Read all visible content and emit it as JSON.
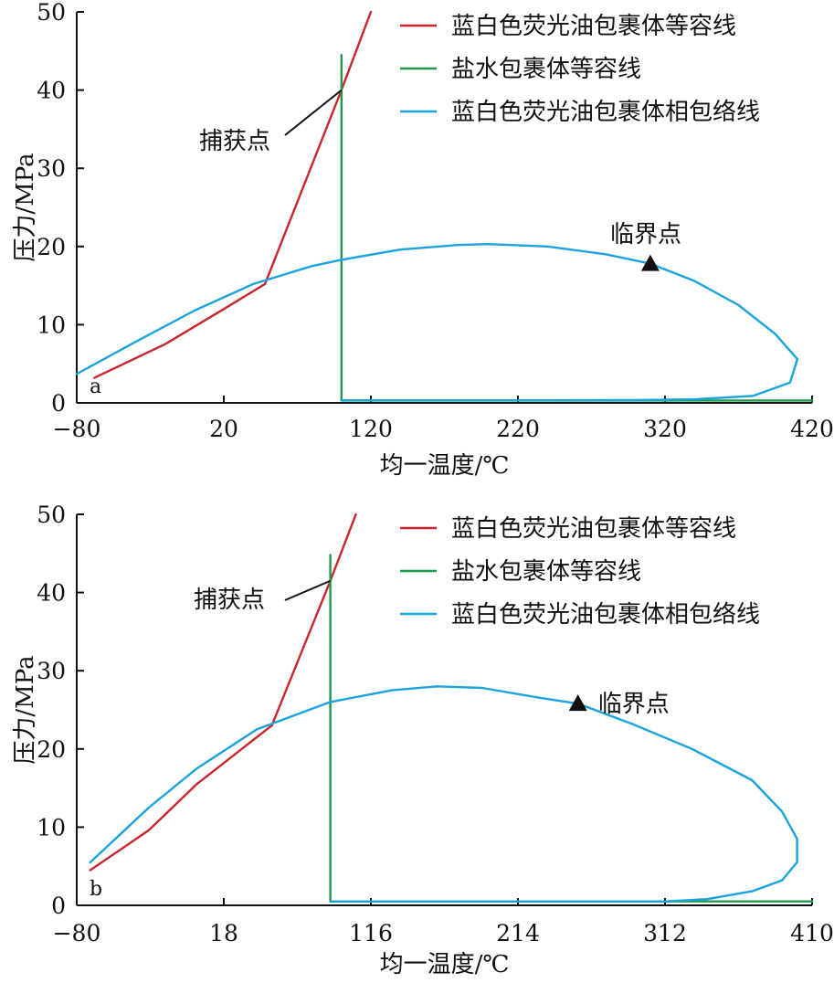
{
  "colors": {
    "isochore_oil": "#c8262c",
    "isochore_brine": "#1f9a4a",
    "envelope": "#1aa3dc",
    "axis": "#111111"
  },
  "chart_data": [
    {
      "type": "line",
      "panel": "a",
      "xlabel": "均一温度/℃",
      "ylabel": "压力/MPa",
      "xlim": [
        -80,
        420
      ],
      "ylim": [
        0,
        50
      ],
      "xticks": [
        -80,
        20,
        120,
        220,
        320,
        420
      ],
      "xtick_labels": [
        "−80",
        "20",
        "120",
        "220",
        "320",
        "420"
      ],
      "yticks": [
        0,
        10,
        20,
        30,
        40,
        50
      ],
      "ytick_labels": [
        "0",
        "10",
        "20",
        "30",
        "40",
        "50"
      ],
      "legend": {
        "position": "top-right",
        "entries": [
          "蓝白色荧光油包裹体等容线",
          "盐水包裹体等容线",
          "蓝白色荧光油包裹体相包络线"
        ]
      },
      "series": [
        {
          "name": "蓝白色荧光油包裹体等容线",
          "color_key": "isochore_oil",
          "points": [
            [
              -68,
              3.2
            ],
            [
              -20,
              7.5
            ],
            [
              20,
              12.0
            ],
            [
              48,
              15.2
            ],
            [
              100,
              40.0
            ],
            [
              120,
              50
            ]
          ]
        },
        {
          "name": "盐水包裹体等容线",
          "color_key": "isochore_brine",
          "points": [
            [
              100,
              44.5
            ],
            [
              100,
              0.3
            ],
            [
              420,
              0.3
            ]
          ]
        },
        {
          "name": "蓝白色荧光油包裹体相包络线",
          "color_key": "envelope",
          "points": [
            [
              -80,
              3.7
            ],
            [
              -40,
              7.8
            ],
            [
              0,
              11.8
            ],
            [
              40,
              15.2
            ],
            [
              80,
              17.5
            ],
            [
              100,
              18.3
            ],
            [
              140,
              19.6
            ],
            [
              180,
              20.2
            ],
            [
              200,
              20.3
            ],
            [
              240,
              20.0
            ],
            [
              280,
              19.0
            ],
            [
              310,
              17.8
            ],
            [
              340,
              15.6
            ],
            [
              370,
              12.5
            ],
            [
              395,
              8.8
            ],
            [
              410,
              5.6
            ],
            [
              405,
              2.6
            ],
            [
              380,
              0.9
            ],
            [
              340,
              0.45
            ],
            [
              300,
              0.35
            ],
            [
              200,
              0.33
            ],
            [
              100,
              0.33
            ]
          ]
        }
      ],
      "annotations": {
        "capture_point": {
          "label": "捕获点",
          "x": 100,
          "y": 40.0
        },
        "critical_point": {
          "label": "临界点",
          "x": 310,
          "y": 17.8
        },
        "panel_label": "a"
      }
    },
    {
      "type": "line",
      "panel": "b",
      "xlabel": "均一温度/℃",
      "ylabel": "压力/MPa",
      "xlim": [
        -80,
        410
      ],
      "ylim": [
        0,
        50
      ],
      "xticks": [
        -80,
        18,
        116,
        214,
        312,
        410
      ],
      "xtick_labels": [
        "−80",
        "18",
        "116",
        "214",
        "312",
        "410"
      ],
      "yticks": [
        0,
        10,
        20,
        30,
        40,
        50
      ],
      "ytick_labels": [
        "0",
        "10",
        "20",
        "30",
        "40",
        "50"
      ],
      "legend": {
        "position": "top-right",
        "entries": [
          "蓝白色荧光油包裹体等容线",
          "盐水包裹体等容线",
          "蓝白色荧光油包裹体相包络线"
        ]
      },
      "series": [
        {
          "name": "蓝白色荧光油包裹体等容线",
          "color_key": "isochore_oil",
          "points": [
            [
              -71,
              4.5
            ],
            [
              -32,
              9.6
            ],
            [
              0,
              15.5
            ],
            [
              50,
              23.0
            ],
            [
              89,
              41.5
            ],
            [
              106,
              50
            ]
          ]
        },
        {
          "name": "盐水包裹体等容线",
          "color_key": "isochore_brine",
          "points": [
            [
              89,
              44.8
            ],
            [
              89,
              0.5
            ],
            [
              410,
              0.5
            ]
          ]
        },
        {
          "name": "蓝白色荧光油包裹体相包络线",
          "color_key": "envelope",
          "points": [
            [
              -71,
              5.5
            ],
            [
              -32,
              12.5
            ],
            [
              0,
              17.5
            ],
            [
              40,
              22.5
            ],
            [
              89,
              26.0
            ],
            [
              130,
              27.5
            ],
            [
              160,
              28.0
            ],
            [
              190,
              27.8
            ],
            [
              230,
              26.5
            ],
            [
              254,
              25.8
            ],
            [
              290,
              23.2
            ],
            [
              330,
              20.0
            ],
            [
              370,
              16.0
            ],
            [
              390,
              12.0
            ],
            [
              400,
              8.5
            ],
            [
              400,
              5.5
            ],
            [
              390,
              3.2
            ],
            [
              370,
              1.8
            ],
            [
              340,
              0.8
            ],
            [
              312,
              0.5
            ],
            [
              250,
              0.5
            ],
            [
              150,
              0.5
            ],
            [
              89,
              0.5
            ]
          ]
        }
      ],
      "annotations": {
        "capture_point": {
          "label": "捕获点",
          "x": 89,
          "y": 41.5
        },
        "critical_point": {
          "label": "临界点",
          "x": 254,
          "y": 25.8
        },
        "panel_label": "b"
      }
    }
  ]
}
